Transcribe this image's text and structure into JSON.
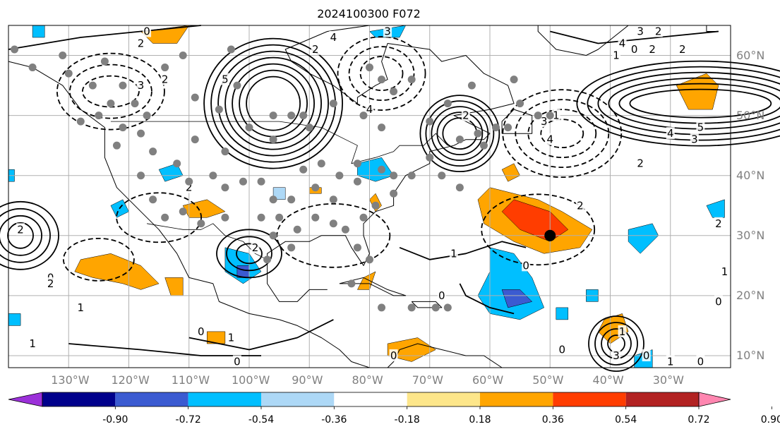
{
  "title": "2024100300 F072",
  "lat_labels": [
    "60°N",
    "50°N",
    "40°N",
    "30°N",
    "20°N",
    "10°N"
  ],
  "lat_values": [
    60,
    50,
    40,
    30,
    20,
    10
  ],
  "lon_labels": [
    "130°W",
    "120°W",
    "110°W",
    "100°W",
    "90°W",
    "80°W",
    "70°W",
    "60°W",
    "50°W",
    "40°W",
    "30°W"
  ],
  "lon_values": [
    -130,
    -120,
    -110,
    -100,
    -90,
    -80,
    -70,
    -60,
    -50,
    -40,
    -30
  ],
  "map_extent": {
    "lon_min": -140,
    "lon_max": -20,
    "lat_min": 8,
    "lat_max": 65
  },
  "colorbar": {
    "ticks": [
      "-0.90",
      "-0.72",
      "-0.54",
      "-0.36",
      "-0.18",
      "0.18",
      "0.36",
      "0.54",
      "0.72",
      "0.90"
    ],
    "colors": [
      "#9b30d9",
      "#00008b",
      "#3b5bd1",
      "#00bfff",
      "#add8f6",
      "#ffffff",
      "#fde68a",
      "#ffa500",
      "#ff3d00",
      "#b22222",
      "#ff86b0"
    ]
  },
  "contour_labels": [
    {
      "text": "0",
      "lon": -117,
      "lat": 64
    },
    {
      "text": "2",
      "lon": -118,
      "lat": 62
    },
    {
      "text": "3",
      "lon": -118,
      "lat": 55
    },
    {
      "text": "2",
      "lon": -114,
      "lat": 56
    },
    {
      "text": "5",
      "lon": -104,
      "lat": 56
    },
    {
      "text": "2",
      "lon": -89,
      "lat": 61
    },
    {
      "text": "4",
      "lon": -86,
      "lat": 63
    },
    {
      "text": "4",
      "lon": -80,
      "lat": 51
    },
    {
      "text": "3",
      "lon": -77,
      "lat": 64
    },
    {
      "text": "2",
      "lon": -64,
      "lat": 50
    },
    {
      "text": "4",
      "lon": -50,
      "lat": 46
    },
    {
      "text": "3",
      "lon": -51,
      "lat": 49
    },
    {
      "text": "1",
      "lon": -49,
      "lat": 50
    },
    {
      "text": "4",
      "lon": -38,
      "lat": 62
    },
    {
      "text": "3",
      "lon": -35,
      "lat": 64
    },
    {
      "text": "2",
      "lon": -32,
      "lat": 64
    },
    {
      "text": "0",
      "lon": -36,
      "lat": 61
    },
    {
      "text": "2",
      "lon": -33,
      "lat": 61
    },
    {
      "text": "2",
      "lon": -28,
      "lat": 61
    },
    {
      "text": "1",
      "lon": -39,
      "lat": 60
    },
    {
      "text": "4",
      "lon": -30,
      "lat": 47
    },
    {
      "text": "5",
      "lon": -25,
      "lat": 48
    },
    {
      "text": "3",
      "lon": -26,
      "lat": 46
    },
    {
      "text": "2",
      "lon": -35,
      "lat": 42
    },
    {
      "text": "2",
      "lon": -45,
      "lat": 35
    },
    {
      "text": "2",
      "lon": -110,
      "lat": 38
    },
    {
      "text": "2",
      "lon": -138,
      "lat": 31
    },
    {
      "text": "0",
      "lon": -133,
      "lat": 23
    },
    {
      "text": "2",
      "lon": -133,
      "lat": 22
    },
    {
      "text": "1",
      "lon": -128,
      "lat": 18
    },
    {
      "text": "1",
      "lon": -136,
      "lat": 12
    },
    {
      "text": "0",
      "lon": -108,
      "lat": 14
    },
    {
      "text": "1",
      "lon": -103,
      "lat": 13
    },
    {
      "text": "0",
      "lon": -102,
      "lat": 9
    },
    {
      "text": "2",
      "lon": -99,
      "lat": 28
    },
    {
      "text": "1",
      "lon": -66,
      "lat": 27
    },
    {
      "text": "0",
      "lon": -54,
      "lat": 25
    },
    {
      "text": "0",
      "lon": -68,
      "lat": 20
    },
    {
      "text": "0",
      "lon": -76,
      "lat": 10
    },
    {
      "text": "0",
      "lon": -48,
      "lat": 11
    },
    {
      "text": "3",
      "lon": -39,
      "lat": 10
    },
    {
      "text": "1",
      "lon": -38,
      "lat": 14
    },
    {
      "text": "0",
      "lon": -34,
      "lat": 10
    },
    {
      "text": "1",
      "lon": -30,
      "lat": 9
    },
    {
      "text": "0",
      "lon": -25,
      "lat": 9
    },
    {
      "text": "0",
      "lon": -22,
      "lat": 19
    },
    {
      "text": "1",
      "lon": -21,
      "lat": 24
    },
    {
      "text": "2",
      "lon": -22,
      "lat": 32
    }
  ],
  "gray_dots": [
    [
      -139,
      61
    ],
    [
      -131,
      60
    ],
    [
      -124,
      59
    ],
    [
      -121,
      55
    ],
    [
      -126,
      55
    ],
    [
      -111,
      60
    ],
    [
      -114,
      58
    ],
    [
      -103,
      61
    ],
    [
      -102,
      55
    ],
    [
      -96,
      50
    ],
    [
      -93,
      50
    ],
    [
      -91,
      50
    ],
    [
      -90,
      48
    ],
    [
      -86,
      52
    ],
    [
      -80,
      58
    ],
    [
      -78,
      56
    ],
    [
      -76,
      54
    ],
    [
      -73,
      56
    ],
    [
      -67,
      52
    ],
    [
      -63,
      55
    ],
    [
      -56,
      56
    ],
    [
      -61,
      45
    ],
    [
      -65,
      46
    ],
    [
      -62,
      47
    ],
    [
      -59,
      48
    ],
    [
      -57,
      48
    ],
    [
      -52,
      50
    ],
    [
      -70,
      43
    ],
    [
      -73,
      40
    ],
    [
      -78,
      41
    ],
    [
      -82,
      42
    ],
    [
      -85,
      40
    ],
    [
      -88,
      42
    ],
    [
      -91,
      41
    ],
    [
      -89,
      38
    ],
    [
      -93,
      36
    ],
    [
      -96,
      36
    ],
    [
      -98,
      39
    ],
    [
      -101,
      39
    ],
    [
      -104,
      38
    ],
    [
      -106,
      40
    ],
    [
      -110,
      39
    ],
    [
      -112,
      42
    ],
    [
      -116,
      44
    ],
    [
      -118,
      47
    ],
    [
      -121,
      48
    ],
    [
      -122,
      45
    ],
    [
      -118,
      40
    ],
    [
      -116,
      36
    ],
    [
      -114,
      33
    ],
    [
      -111,
      34
    ],
    [
      -108,
      32
    ],
    [
      -104,
      33
    ],
    [
      -98,
      33
    ],
    [
      -96,
      30
    ],
    [
      -92,
      31
    ],
    [
      -89,
      33
    ],
    [
      -86,
      32
    ],
    [
      -84,
      31
    ],
    [
      -81,
      33
    ],
    [
      -79,
      35
    ],
    [
      -76,
      37
    ],
    [
      -80,
      26
    ],
    [
      -82,
      28
    ],
    [
      -83,
      22
    ],
    [
      -78,
      18
    ],
    [
      -73,
      18
    ],
    [
      -69,
      18
    ],
    [
      -67,
      18
    ],
    [
      -76,
      40
    ],
    [
      -82,
      39
    ],
    [
      -104,
      44
    ],
    [
      -109,
      46
    ],
    [
      -96,
      46
    ],
    [
      -100,
      48
    ],
    [
      -119,
      52
    ],
    [
      -117,
      50
    ],
    [
      -123,
      52
    ],
    [
      -125,
      50
    ],
    [
      -128,
      49
    ],
    [
      -130,
      57
    ],
    [
      -136,
      58
    ],
    [
      -109,
      53
    ],
    [
      -105,
      51
    ],
    [
      -78,
      48
    ],
    [
      -81,
      50
    ],
    [
      -70,
      49
    ],
    [
      -55,
      52
    ],
    [
      -50,
      50
    ],
    [
      -65,
      38
    ],
    [
      -68,
      40
    ],
    [
      -86,
      36
    ],
    [
      -93,
      28
    ],
    [
      -97,
      26
    ],
    [
      -95,
      33
    ]
  ],
  "black_dot": {
    "lon": -50,
    "lat": 30
  }
}
